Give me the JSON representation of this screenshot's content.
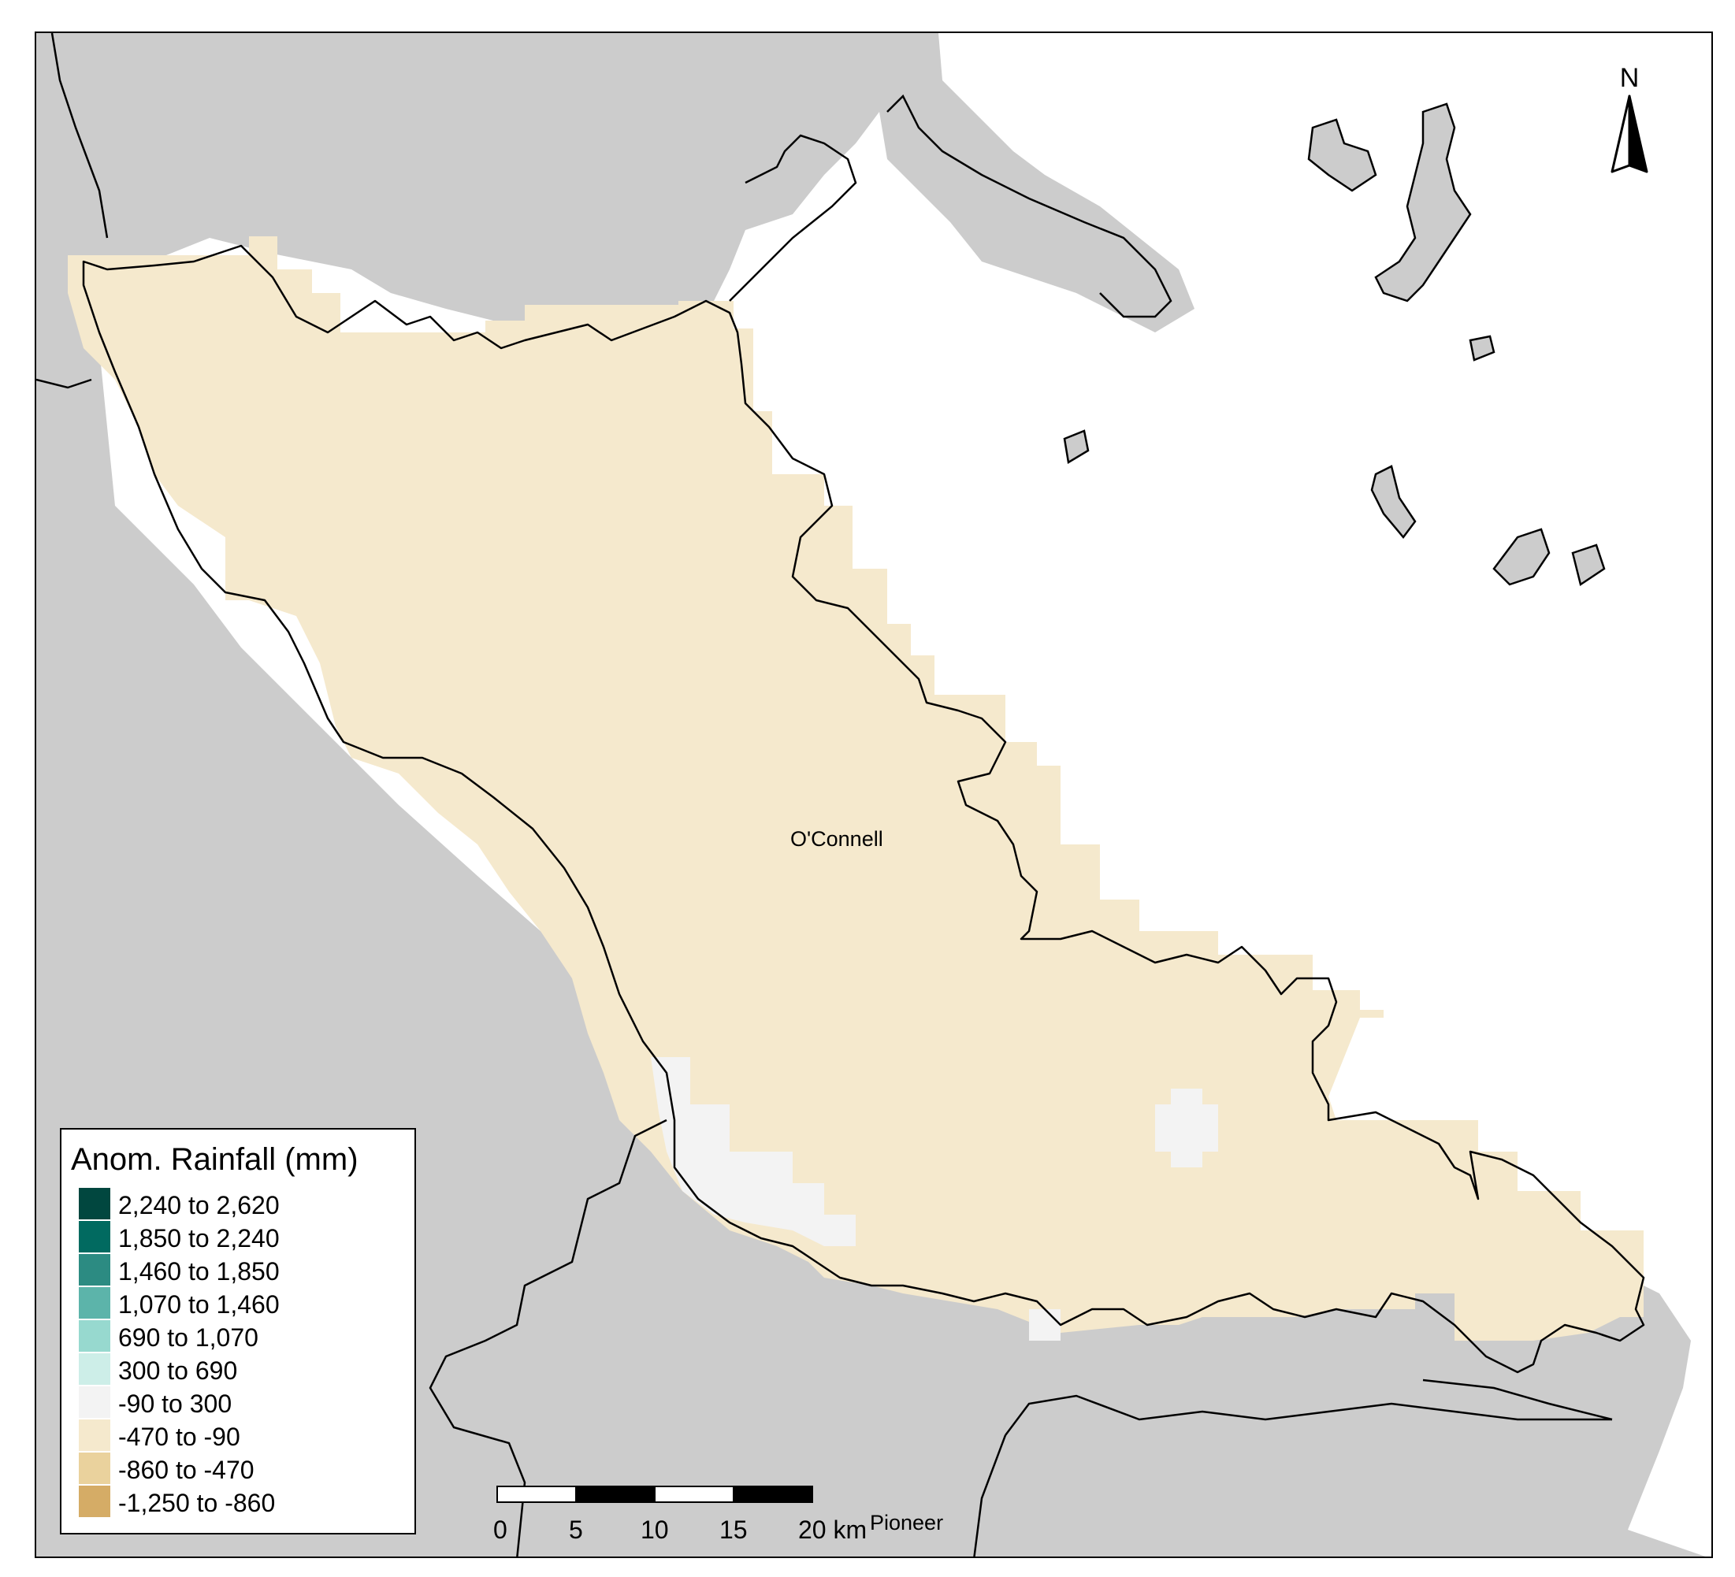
{
  "legend": {
    "title": "Anom. Rainfall (mm)",
    "items": [
      {
        "label": "2,240 to 2,620",
        "color": "#01473f"
      },
      {
        "label": "1,850 to 2,240",
        "color": "#016a60"
      },
      {
        "label": "1,460 to 1,850",
        "color": "#2c8b82"
      },
      {
        "label": "1,070 to 1,460",
        "color": "#5cb4aa"
      },
      {
        "label": "690 to 1,070",
        "color": "#97d9cf"
      },
      {
        "label": "300 to 690",
        "color": "#cdeee8"
      },
      {
        "label": "-90 to 300",
        "color": "#f3f3f3"
      },
      {
        "label": "-470 to -90",
        "color": "#f5e9cd"
      },
      {
        "label": "-860 to -470",
        "color": "#ead29d"
      },
      {
        "label": "-1,250 to -860",
        "color": "#d5ac66"
      }
    ]
  },
  "map": {
    "region_label": "O'Connell",
    "neighbour_label": "Pioneer",
    "colors": {
      "land": "#cccccc",
      "sea": "#ffffff",
      "catchment_fill": "#f5e9cd",
      "near_normal_fill": "#f3f3f3"
    }
  },
  "scale_bar": {
    "ticks": [
      "0",
      "5",
      "10",
      "15",
      "20 km"
    ]
  },
  "north_arrow": {
    "label": "N"
  }
}
